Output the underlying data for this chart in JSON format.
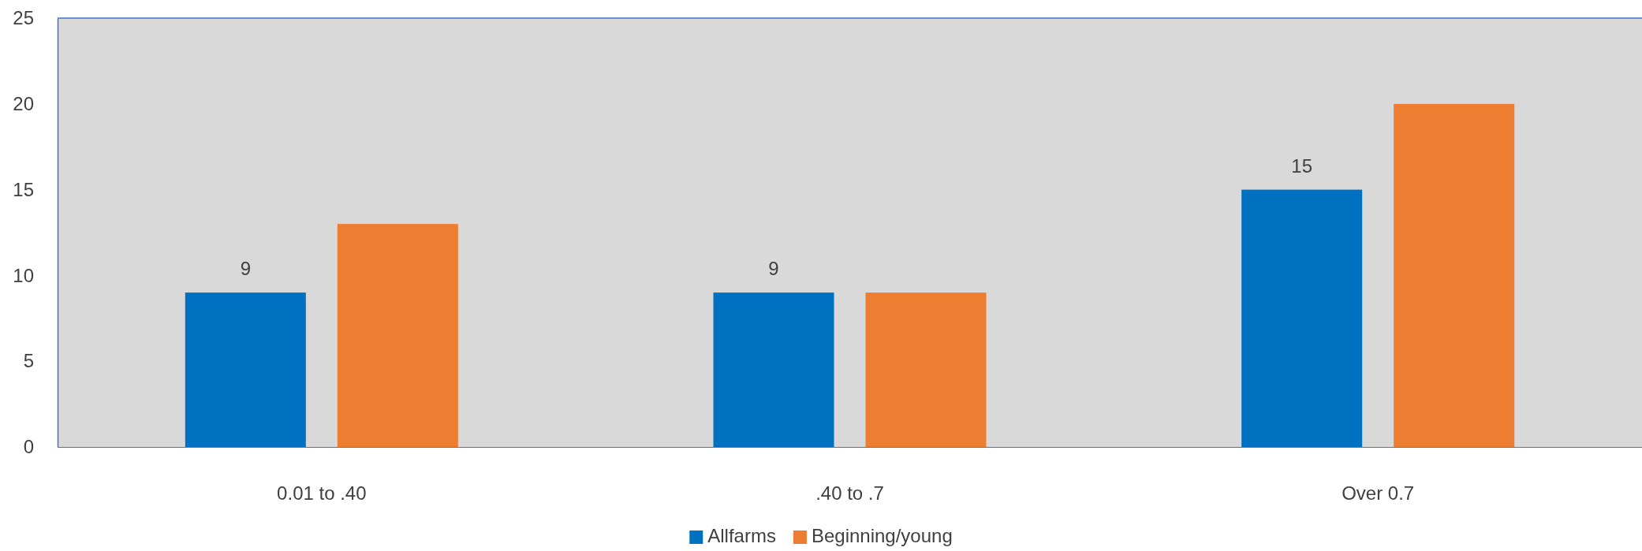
{
  "chart_data": {
    "type": "bar",
    "categories": [
      "0.01 to .40",
      ".40 to .7",
      "Over 0.7"
    ],
    "series": [
      {
        "name": "Allfarms",
        "color": "#0070c0",
        "values": [
          9,
          9,
          15
        ],
        "value_labels": [
          "9",
          "9",
          "15"
        ]
      },
      {
        "name": "Beginning/young",
        "color": "#ed7d31",
        "values": [
          13,
          9,
          20
        ]
      }
    ],
    "ylim": [
      0,
      25
    ],
    "yticks": [
      0,
      5,
      10,
      15,
      20,
      25
    ],
    "legend": "bottom"
  }
}
